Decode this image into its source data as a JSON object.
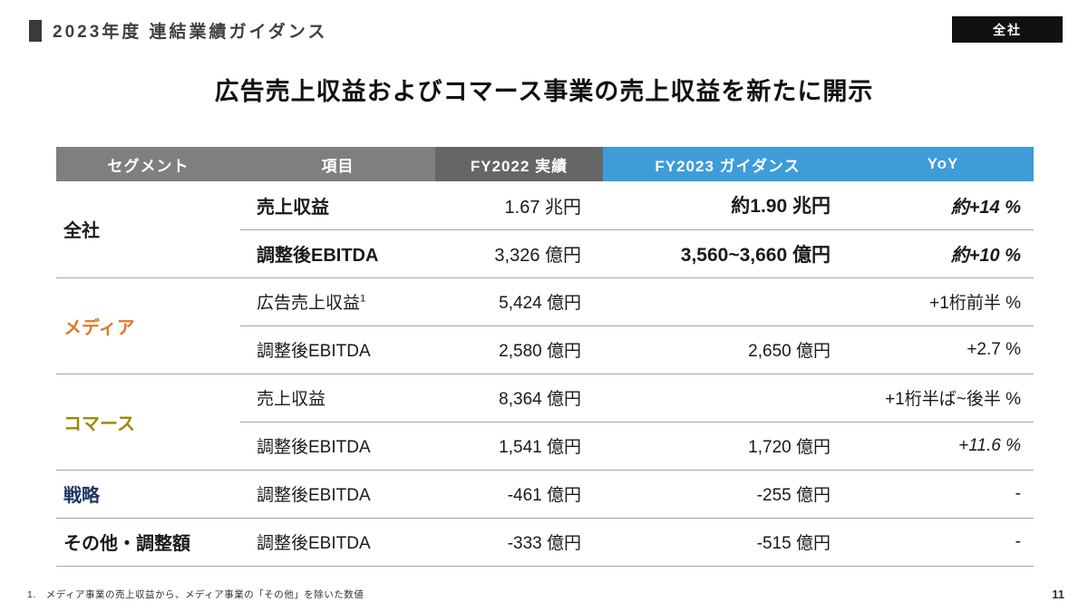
{
  "slide": {
    "header_title": "2023年度 連結業績ガイダンス",
    "badge": "全社",
    "main_title": "広告売上収益およびコマース事業の売上収益を新たに開示",
    "footnote": "1.　メディア事業の売上収益から、メディア事業の「その他」を除いた数値",
    "page_number": "11"
  },
  "table": {
    "headers": [
      "セグメント",
      "項目",
      "FY2022 実績",
      "FY2023 ガイダンス",
      "YoY"
    ],
    "header_colors": {
      "segment": "#7f7f7f",
      "item": "#7f7f7f",
      "fy2022": "#666666",
      "fy2023": "#3e9cd9",
      "yoy": "#3e9cd9"
    },
    "segments": [
      {
        "name": "全社",
        "color": "#1a1a1a",
        "rows": [
          {
            "item": "売上収益",
            "fy2022": "1.67 兆円",
            "fy2023": "約1.90 兆円",
            "yoy": "約+14 %",
            "emphasis": true
          },
          {
            "item": "調整後EBITDA",
            "fy2022": "3,326 億円",
            "fy2023": "3,560~3,660 億円",
            "yoy": "約+10 %",
            "emphasis": true
          }
        ]
      },
      {
        "name": "メディア",
        "color": "#e07a28",
        "rows": [
          {
            "item": "広告売上収益",
            "item_sup": "1",
            "fy2022": "5,424 億円",
            "fy2023": "",
            "yoy": "+1桁前半 %"
          },
          {
            "item": "調整後EBITDA",
            "fy2022": "2,580 億円",
            "fy2023": "2,650 億円",
            "yoy": "+2.7 %"
          }
        ]
      },
      {
        "name": "コマース",
        "color": "#9c8a00",
        "rows": [
          {
            "item": "売上収益",
            "fy2022": "8,364 億円",
            "fy2023": "",
            "yoy": "+1桁半ば~後半 %"
          },
          {
            "item": "調整後EBITDA",
            "fy2022": "1,541 億円",
            "fy2023": "1,720 億円",
            "yoy": "+11.6 %",
            "yoy_italic": true
          }
        ]
      },
      {
        "name": "戦略",
        "color": "#203864",
        "rows": [
          {
            "item": "調整後EBITDA",
            "fy2022": "-461 億円",
            "fy2023": "-255 億円",
            "yoy": "-"
          }
        ]
      },
      {
        "name": "その他・調整額",
        "color": "#1a1a1a",
        "rows": [
          {
            "item": "調整後EBITDA",
            "fy2022": "-333 億円",
            "fy2023": "-515 億円",
            "yoy": "-"
          }
        ]
      }
    ]
  }
}
